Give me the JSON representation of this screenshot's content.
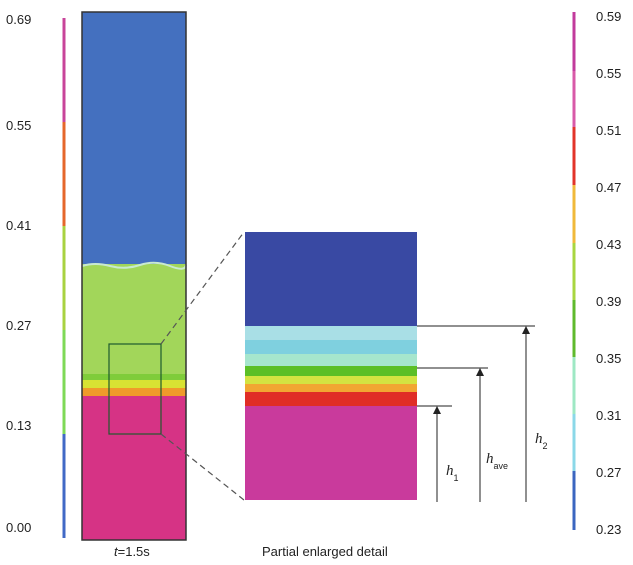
{
  "left_scale": {
    "ticks": [
      "0.69",
      "0.55",
      "0.41",
      "0.27",
      "0.13",
      "0.00"
    ],
    "colors": [
      "#c8449a",
      "#e5672b",
      "#a8d240",
      "#7ed957",
      "#4169c6"
    ]
  },
  "right_scale": {
    "ticks": [
      "0.59",
      "0.55",
      "0.51",
      "0.47",
      "0.43",
      "0.39",
      "0.35",
      "0.31",
      "0.27",
      "0.23"
    ],
    "colors": [
      "#c23b9c",
      "#d85aa8",
      "#e2342a",
      "#f0b93a",
      "#a8d640",
      "#5fba2d",
      "#9ee8c4",
      "#8bd8e8",
      "#3b66c0"
    ]
  },
  "column": {
    "colors": {
      "top": "#4470bf",
      "middle": "#a2d65a",
      "band_yellow": "#d8e233",
      "band_green": "#7fcc3a",
      "band_orange": "#f09a2a",
      "bottom": "#d63385"
    }
  },
  "detail": {
    "colors": {
      "top": "#3949a3",
      "light1": "#a9dfe6",
      "light2": "#7fd0df",
      "light3": "#a6e6cd",
      "green": "#5cbf26",
      "yellow": "#d4e341",
      "orange": "#f2a632",
      "red": "#e02d26",
      "bottom": "#c93a9c"
    },
    "labels": {
      "h1_main": "h",
      "h1_sub": "1",
      "have_main": "h",
      "have_sub": "ave",
      "h2_main": "h",
      "h2_sub": "2"
    }
  },
  "captions": {
    "time_italic": "t",
    "time_rest": "=1.5s",
    "detail": "Partial enlarged detail"
  }
}
